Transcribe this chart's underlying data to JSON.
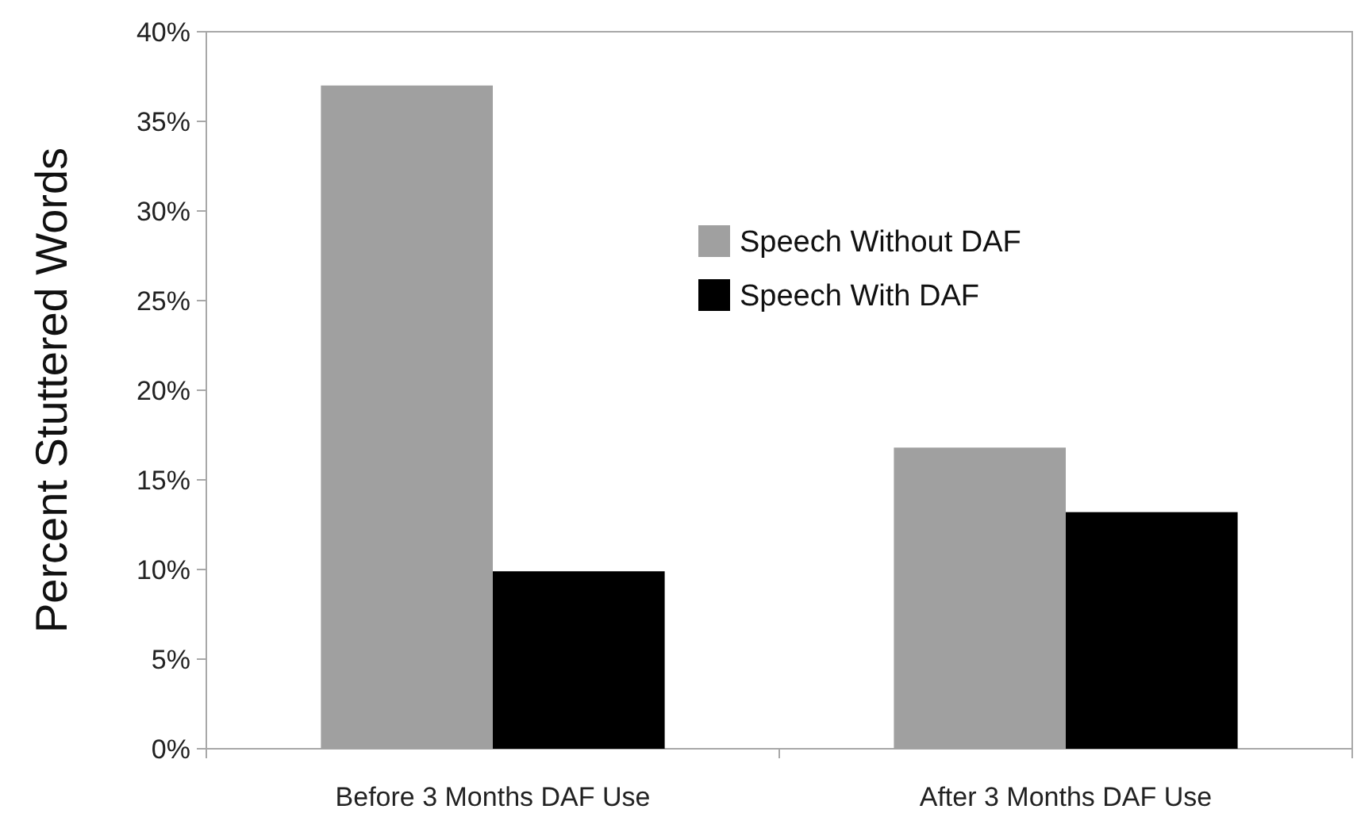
{
  "chart_data": {
    "type": "bar",
    "ylabel": "Percent Stuttered Words",
    "categories": [
      "Before 3 Months DAF Use",
      "After 3 Months DAF Use"
    ],
    "series": [
      {
        "name": "Speech Without DAF",
        "color": "#a0a0a0",
        "values": [
          37,
          16.8
        ]
      },
      {
        "name": "Speech With DAF",
        "color": "#000000",
        "values": [
          9.9,
          13.2
        ]
      }
    ],
    "ylim": [
      0,
      40
    ],
    "yticks": [
      {
        "value": 0,
        "label": "0%"
      },
      {
        "value": 5,
        "label": "5%"
      },
      {
        "value": 10,
        "label": "10%"
      },
      {
        "value": 15,
        "label": "15%"
      },
      {
        "value": 20,
        "label": "20%"
      },
      {
        "value": 25,
        "label": "25%"
      },
      {
        "value": 30,
        "label": "30%"
      },
      {
        "value": 35,
        "label": "35%"
      },
      {
        "value": 40,
        "label": "40%"
      }
    ],
    "grid": false,
    "legend": "top right"
  }
}
